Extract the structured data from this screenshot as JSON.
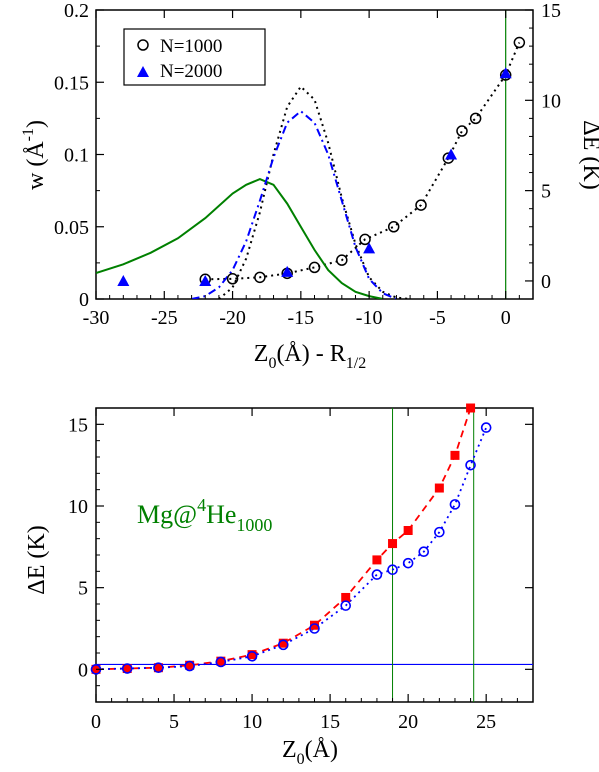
{
  "colors": {
    "black": "#000000",
    "blue": "#0000ff",
    "green": "#008000",
    "red": "#ff0000"
  },
  "chart_data": [
    {
      "panel": "top",
      "type": "line",
      "xlabel": {
        "main": "Z",
        "sub": "0",
        "tail": "(Å) - R",
        "sub2": "1/2"
      },
      "ylabel_left": {
        "main": "w (Å",
        "sup": "-1",
        "tail": ")"
      },
      "ylabel_right": "ΔE (K)",
      "xlim": [
        -30,
        2
      ],
      "ylim_left": [
        0,
        0.2
      ],
      "ylim_right": [
        -1,
        15
      ],
      "xticks": [
        "-30",
        "-25",
        "-20",
        "-15",
        "-10",
        "-5",
        "0"
      ],
      "yticks_left": [
        "0",
        "0.05",
        "0.1",
        "0.15",
        "0.2"
      ],
      "yticks_right": [
        "0",
        "5",
        "10",
        "15"
      ],
      "vline_x": 0,
      "legend": [
        "N=1000",
        "N=2000"
      ],
      "series": [
        {
          "name": "N=1000",
          "axis": "right",
          "marker": "open-circle",
          "color": "#000000",
          "x": [
            -22,
            -20,
            -18,
            -16,
            -14,
            -12,
            -10.3,
            -8.2,
            -6.2,
            -4.2,
            -3.2,
            -2.2,
            0,
            1
          ],
          "y": [
            0.09,
            0.12,
            0.2,
            0.42,
            0.75,
            1.15,
            2.3,
            3.0,
            4.2,
            6.8,
            8.3,
            9.0,
            11.4,
            13.2
          ]
        },
        {
          "name": "N=2000",
          "axis": "right",
          "marker": "filled-triangle",
          "color": "#0000ff",
          "x": [
            -28,
            -22,
            -16,
            -10,
            -4,
            0
          ],
          "y": [
            0,
            0,
            0.5,
            1.8,
            7.0,
            11.5
          ]
        },
        {
          "axis": "right",
          "style": "dotted",
          "color": "#000000",
          "x": [
            -22,
            -20,
            -18,
            -16,
            -14,
            -12,
            -10.3,
            -8.2,
            -6.2,
            -4.2,
            -3.2,
            -2.2,
            0,
            1
          ],
          "y": [
            0.09,
            0.12,
            0.2,
            0.42,
            0.75,
            1.15,
            2.3,
            3.0,
            4.2,
            6.8,
            8.3,
            9.0,
            11.4,
            13.2
          ]
        },
        {
          "axis": "left",
          "style": "solid",
          "color": "#008000",
          "x": [
            -30,
            -28,
            -26,
            -24,
            -22,
            -20,
            -19,
            -18,
            -17,
            -16,
            -15,
            -14,
            -13,
            -12,
            -11,
            -10,
            -9
          ],
          "y": [
            0.018,
            0.024,
            0.032,
            0.042,
            0.056,
            0.073,
            0.079,
            0.083,
            0.079,
            0.066,
            0.05,
            0.034,
            0.02,
            0.011,
            0.005,
            0.002,
            0
          ]
        },
        {
          "axis": "left",
          "style": "dotted",
          "color": "#000000",
          "x": [
            -21,
            -20,
            -19,
            -18,
            -17,
            -16,
            -15,
            -14,
            -13,
            -12,
            -11,
            -10,
            -9,
            -8,
            -7
          ],
          "y": [
            0,
            0.008,
            0.028,
            0.06,
            0.1,
            0.133,
            0.147,
            0.138,
            0.108,
            0.07,
            0.038,
            0.015,
            0.005,
            0.001,
            0
          ]
        },
        {
          "axis": "left",
          "style": "dashdot",
          "color": "#0000ff",
          "x": [
            -23,
            -22,
            -21,
            -20,
            -19,
            -18,
            -17,
            -16,
            -15,
            -14,
            -13,
            -12,
            -11,
            -10,
            -9,
            -8
          ],
          "y": [
            0,
            0.002,
            0.008,
            0.02,
            0.04,
            0.068,
            0.098,
            0.122,
            0.13,
            0.122,
            0.1,
            0.068,
            0.036,
            0.014,
            0.004,
            0
          ]
        }
      ]
    },
    {
      "panel": "bottom",
      "type": "line",
      "xlabel": {
        "main": "Z",
        "sub": "0",
        "tail": "(Å)"
      },
      "ylabel": "ΔE (K)",
      "xlim": [
        0,
        28
      ],
      "ylim": [
        -2,
        16
      ],
      "xticks": [
        "0",
        "5",
        "10",
        "15",
        "20",
        "25"
      ],
      "yticks": [
        "0",
        "5",
        "10",
        "15"
      ],
      "hline_y": 0.3,
      "vlines_x": [
        19,
        24.2
      ],
      "annotation": {
        "main": "Mg@",
        "sup": "4",
        "mid": "He",
        "sub": "1000"
      },
      "series": [
        {
          "marker": "filled-square",
          "style": "dashed",
          "color": "#ff0000",
          "x": [
            0,
            2,
            4,
            6,
            8,
            10,
            12,
            14,
            16,
            18,
            19,
            20,
            22,
            23,
            24
          ],
          "y": [
            0,
            0.05,
            0.1,
            0.25,
            0.5,
            0.9,
            1.6,
            2.7,
            4.4,
            6.7,
            7.7,
            8.5,
            11.1,
            13.1,
            16
          ]
        },
        {
          "marker": "open-circle",
          "style": "dotted",
          "color": "#0000ff",
          "x": [
            0,
            2,
            4,
            6,
            8,
            10,
            12,
            14,
            16,
            18,
            19,
            20,
            21,
            22,
            23,
            24,
            25
          ],
          "y": [
            0,
            0.05,
            0.1,
            0.2,
            0.45,
            0.8,
            1.5,
            2.5,
            3.9,
            5.8,
            6.1,
            6.5,
            7.2,
            8.4,
            10.1,
            12.5,
            14.8
          ]
        }
      ]
    }
  ]
}
